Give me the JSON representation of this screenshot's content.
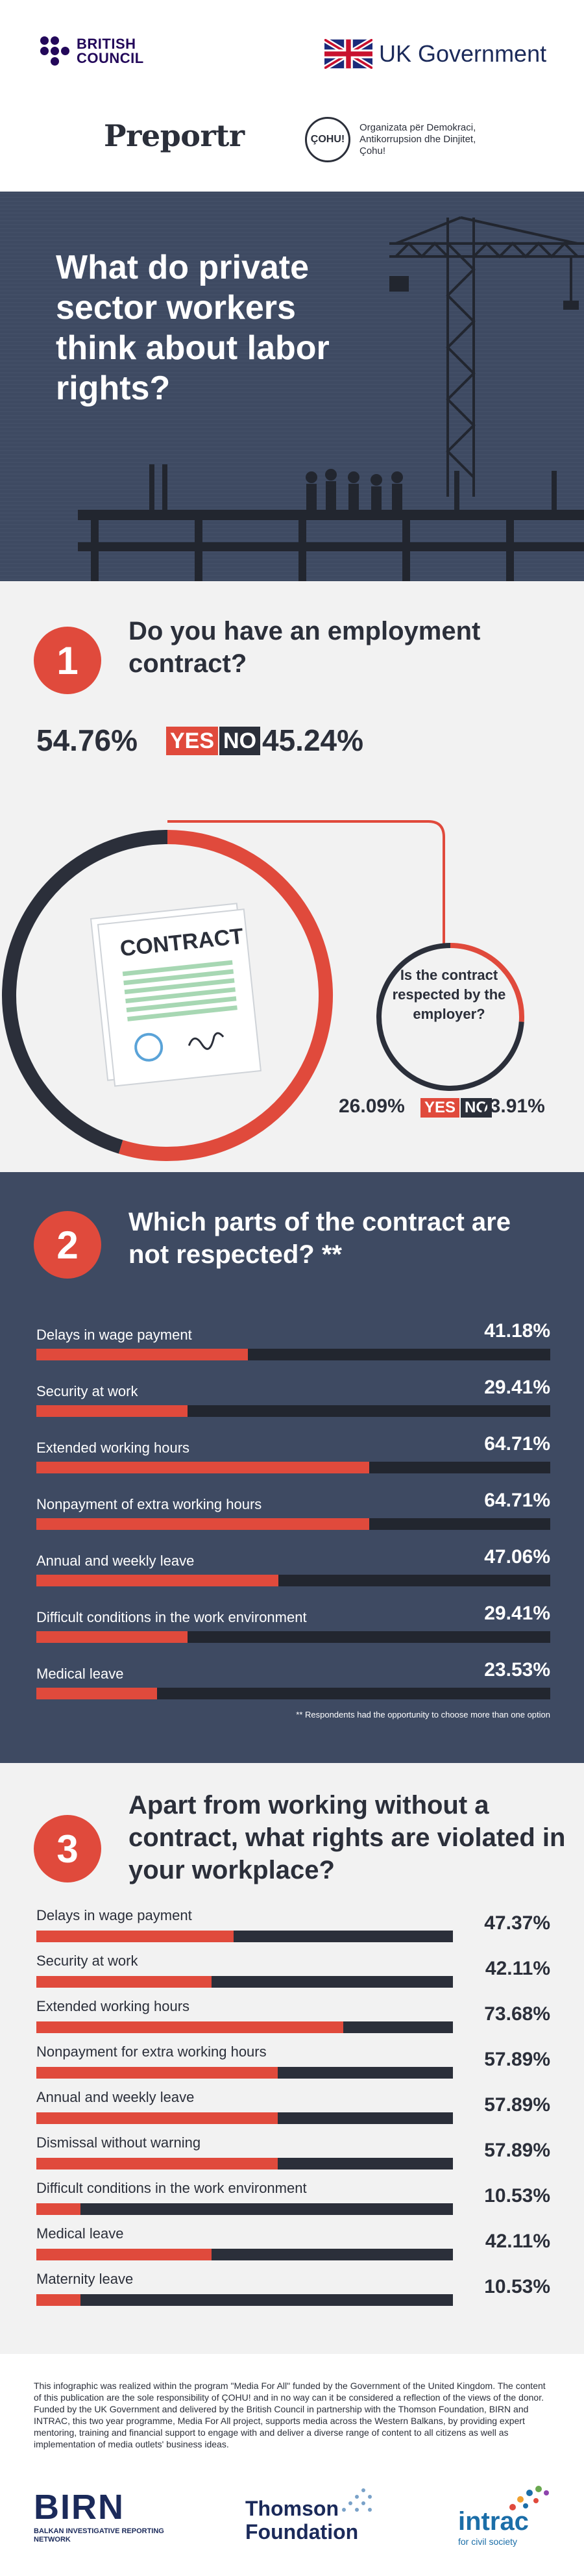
{
  "logos": {
    "british_council_line1": "BRITISH",
    "british_council_line2": "COUNCIL",
    "uk_gov": "UK Government",
    "preportr": "Preportr",
    "chohu_mark": "ÇOHU!",
    "chohu_text": "Organizata për Demokraci, Antikorrupsion dhe Dinjitet, Çohu!"
  },
  "hero": {
    "title": "What do private sector workers think about labor rights?"
  },
  "colors": {
    "accent": "#e04a3c",
    "dark": "#2b2f3a",
    "navy": "#3e4a62"
  },
  "yes_label": "YES",
  "no_label": "NO",
  "section1": {
    "number": "1",
    "question": "Do you have an employment contract?",
    "yes_pct": "54.76%",
    "no_pct": "45.24%",
    "contract_label": "CONTRACT",
    "sub_question": "Is the contract respected by the employer?",
    "sub_yes_pct": "26.09%",
    "sub_no_pct": "73.91%"
  },
  "section2": {
    "number": "2",
    "question": "Which parts of the contract are not respected? **",
    "footnote": "** Respondents had the opportunity to choose more than one option"
  },
  "section3": {
    "number": "3",
    "question": "Apart from working without a contract, what rights are violated in your workplace?"
  },
  "chart_data": [
    {
      "type": "pie",
      "title": "Do you have an employment contract?",
      "categories": [
        "YES",
        "NO"
      ],
      "values": [
        54.76,
        45.24
      ]
    },
    {
      "type": "pie",
      "title": "Is the contract respected by the employer?",
      "categories": [
        "YES",
        "NO"
      ],
      "values": [
        26.09,
        73.91
      ]
    },
    {
      "type": "bar",
      "title": "Which parts of the contract are not respected? **",
      "categories": [
        "Delays in wage payment",
        "Security at work",
        "Extended working hours",
        "Nonpayment of extra working hours",
        "Annual and weekly leave",
        "Difficult conditions in the work environment",
        "Medical leave"
      ],
      "values": [
        41.18,
        29.41,
        64.71,
        64.71,
        47.06,
        29.41,
        23.53
      ],
      "labels": [
        "41.18%",
        "29.41%",
        "64.71%",
        "64.71%",
        "47.06%",
        "29.41%",
        "23.53%"
      ]
    },
    {
      "type": "bar",
      "title": "Apart from working without a contract, what rights are violated in your workplace?",
      "categories": [
        "Delays in wage payment",
        "Security at work",
        "Extended working hours",
        "Nonpayment for extra working hours",
        "Annual and weekly leave",
        "Dismissal without warning",
        "Difficult conditions in the work environment",
        "Medical leave",
        "Maternity leave"
      ],
      "values": [
        47.37,
        42.11,
        73.68,
        57.89,
        57.89,
        57.89,
        10.53,
        42.11,
        10.53
      ],
      "labels": [
        "47.37%",
        "42.11%",
        "73.68%",
        "57.89%",
        "57.89%",
        "57.89%",
        "10.53%",
        "42.11%",
        "10.53%"
      ]
    }
  ],
  "footer": {
    "text": "This infographic was realized within the program \"Media For All\" funded by the Government of the United Kingdom. The content of this publication are the sole responsibility of ÇOHU! and in no way can it be considered a reflection of the views of the donor. Funded by the UK Government and delivered by the British Council in partnership with the Thomson Foundation, BIRN and INTRAC, this two year programme, Media For All project, supports media across the Western Balkans, by providing expert mentoring, training and financial support to engage with and deliver a diverse range of content to all citizens as well as implementation of media outlets' business ideas.",
    "birn": "BIRN",
    "birn_sub": "BALKAN INVESTIGATIVE REPORTING NETWORK",
    "thomson_line1": "Thomson",
    "thomson_line2": "Foundation",
    "intrac": "intrac",
    "intrac_sub": "for civil society"
  }
}
